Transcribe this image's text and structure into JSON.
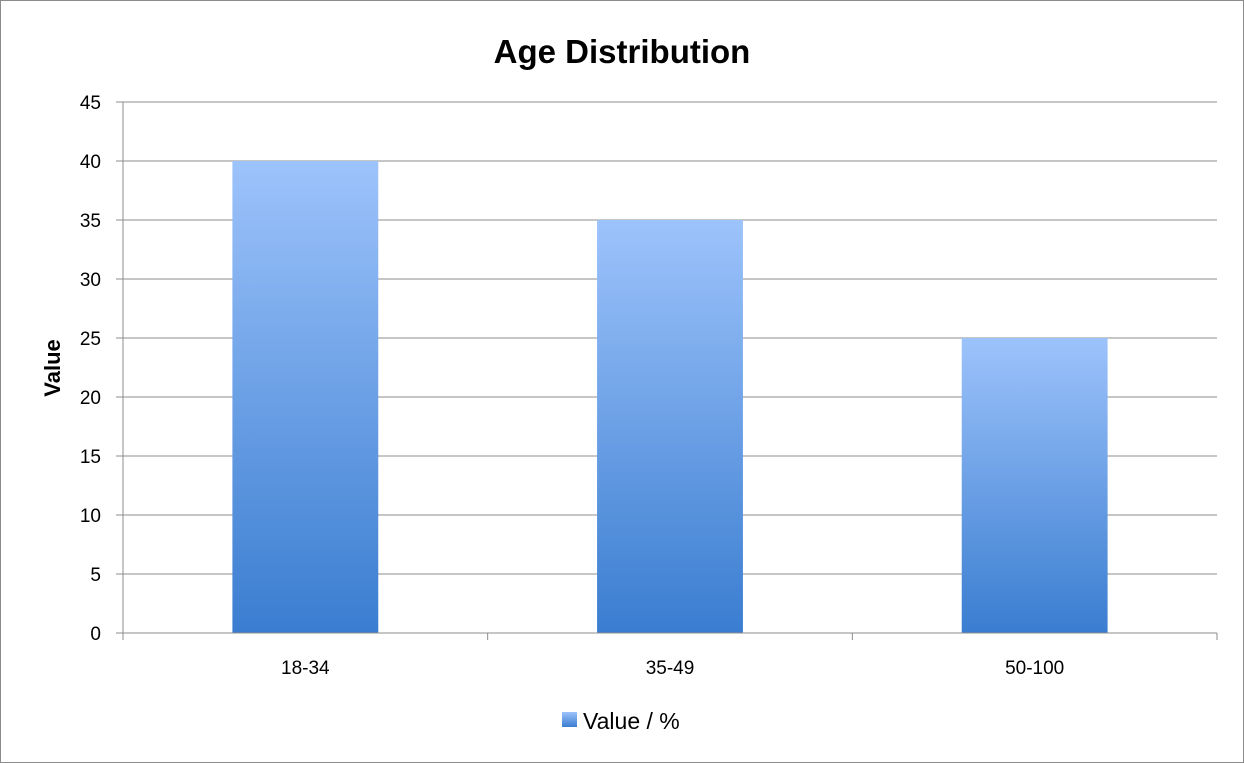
{
  "chart_data": {
    "type": "bar",
    "title": "Age Distribution",
    "xlabel": "",
    "ylabel": "Value",
    "categories": [
      "18-34",
      "35-49",
      "50-100"
    ],
    "series": [
      {
        "name": "Value / %",
        "values": [
          40,
          35,
          25
        ]
      }
    ],
    "ylim": [
      0,
      45
    ],
    "yticks": [
      "0",
      "5",
      "10",
      "15",
      "20",
      "25",
      "30",
      "35",
      "40",
      "45"
    ],
    "grid": "horizontal",
    "legend_position": "bottom",
    "colors": {
      "bar_top": "#9dc3fb",
      "bar_bottom": "#3a7dd0",
      "grid": "#8c8c8c"
    }
  }
}
